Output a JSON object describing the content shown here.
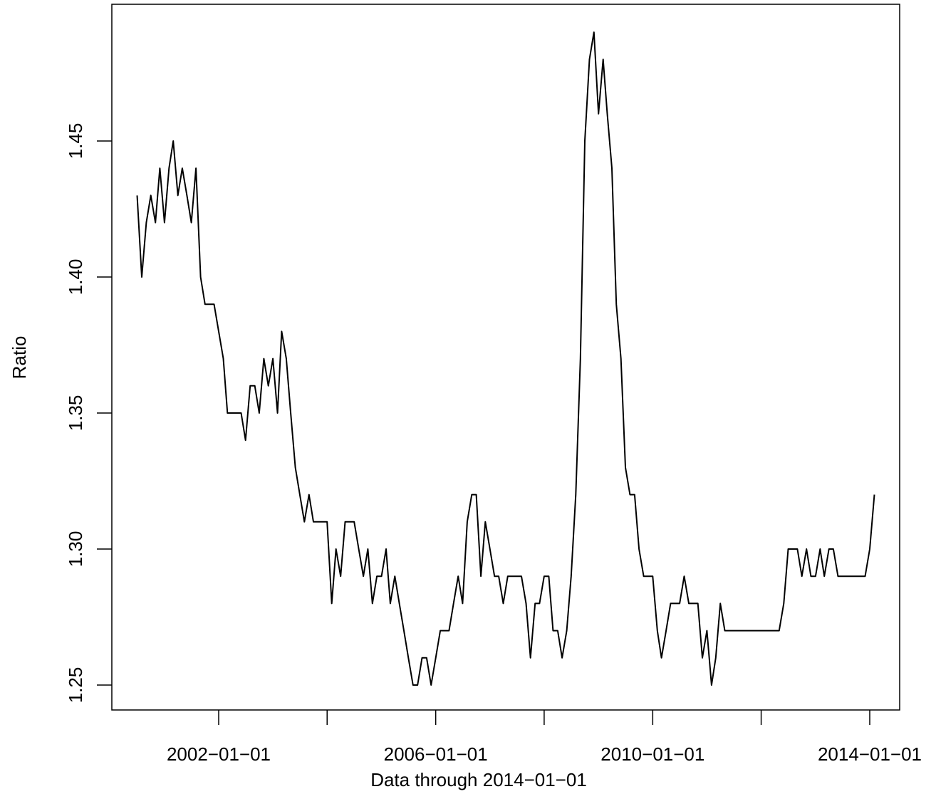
{
  "chart_data": {
    "type": "line",
    "title": "",
    "xlabel": "Data through 2014−01−01",
    "ylabel": "Ratio",
    "xlim": [
      "2000-01-01",
      "2014-01-01"
    ],
    "ylim": [
      1.25,
      1.49
    ],
    "grid": false,
    "line_color": "#000000",
    "x_ticks": [
      {
        "date": "2002-01-01",
        "label": "2002−01−01"
      },
      {
        "date": "2004-01-01",
        "label": ""
      },
      {
        "date": "2006-01-01",
        "label": "2006−01−01"
      },
      {
        "date": "2008-01-01",
        "label": ""
      },
      {
        "date": "2010-01-01",
        "label": "2010−01−01"
      },
      {
        "date": "2012-01-01",
        "label": ""
      },
      {
        "date": "2014-01-01",
        "label": "2014−01−01"
      }
    ],
    "y_ticks": [
      {
        "value": 1.25,
        "label": "1.25"
      },
      {
        "value": 1.3,
        "label": "1.30"
      },
      {
        "value": 1.35,
        "label": "1.35"
      },
      {
        "value": 1.4,
        "label": "1.40"
      },
      {
        "value": 1.45,
        "label": "1.45"
      }
    ],
    "series": [
      {
        "start": "2000-07-01",
        "frequency": "monthly",
        "values": [
          1.43,
          1.4,
          1.42,
          1.43,
          1.42,
          1.44,
          1.42,
          1.44,
          1.45,
          1.43,
          1.44,
          1.43,
          1.42,
          1.44,
          1.4,
          1.39,
          1.39,
          1.39,
          1.38,
          1.37,
          1.35,
          1.35,
          1.35,
          1.35,
          1.34,
          1.36,
          1.36,
          1.35,
          1.37,
          1.36,
          1.37,
          1.35,
          1.38,
          1.37,
          1.35,
          1.33,
          1.32,
          1.31,
          1.32,
          1.31,
          1.31,
          1.31,
          1.31,
          1.28,
          1.3,
          1.29,
          1.31,
          1.31,
          1.31,
          1.3,
          1.29,
          1.3,
          1.28,
          1.29,
          1.29,
          1.3,
          1.28,
          1.29,
          1.28,
          1.27,
          1.26,
          1.25,
          1.25,
          1.26,
          1.26,
          1.25,
          1.26,
          1.27,
          1.27,
          1.27,
          1.28,
          1.29,
          1.28,
          1.31,
          1.32,
          1.32,
          1.29,
          1.31,
          1.3,
          1.29,
          1.29,
          1.28,
          1.29,
          1.29,
          1.29,
          1.29,
          1.28,
          1.26,
          1.28,
          1.28,
          1.29,
          1.29,
          1.27,
          1.27,
          1.26,
          1.27,
          1.29,
          1.32,
          1.37,
          1.45,
          1.48,
          1.49,
          1.46,
          1.48,
          1.46,
          1.44,
          1.39,
          1.37,
          1.33,
          1.32,
          1.32,
          1.3,
          1.29,
          1.29,
          1.29,
          1.27,
          1.26,
          1.27,
          1.28,
          1.28,
          1.28,
          1.29,
          1.28,
          1.28,
          1.28,
          1.26,
          1.27,
          1.25,
          1.26,
          1.28,
          1.27,
          1.27,
          1.27,
          1.27,
          1.27,
          1.27,
          1.27,
          1.27,
          1.27,
          1.27,
          1.27,
          1.27,
          1.27,
          1.28,
          1.3,
          1.3,
          1.3,
          1.29,
          1.3,
          1.29,
          1.29,
          1.3,
          1.29,
          1.3,
          1.3,
          1.29,
          1.29,
          1.29,
          1.29,
          1.29,
          1.29,
          1.29,
          1.3,
          1.32
        ]
      }
    ]
  }
}
